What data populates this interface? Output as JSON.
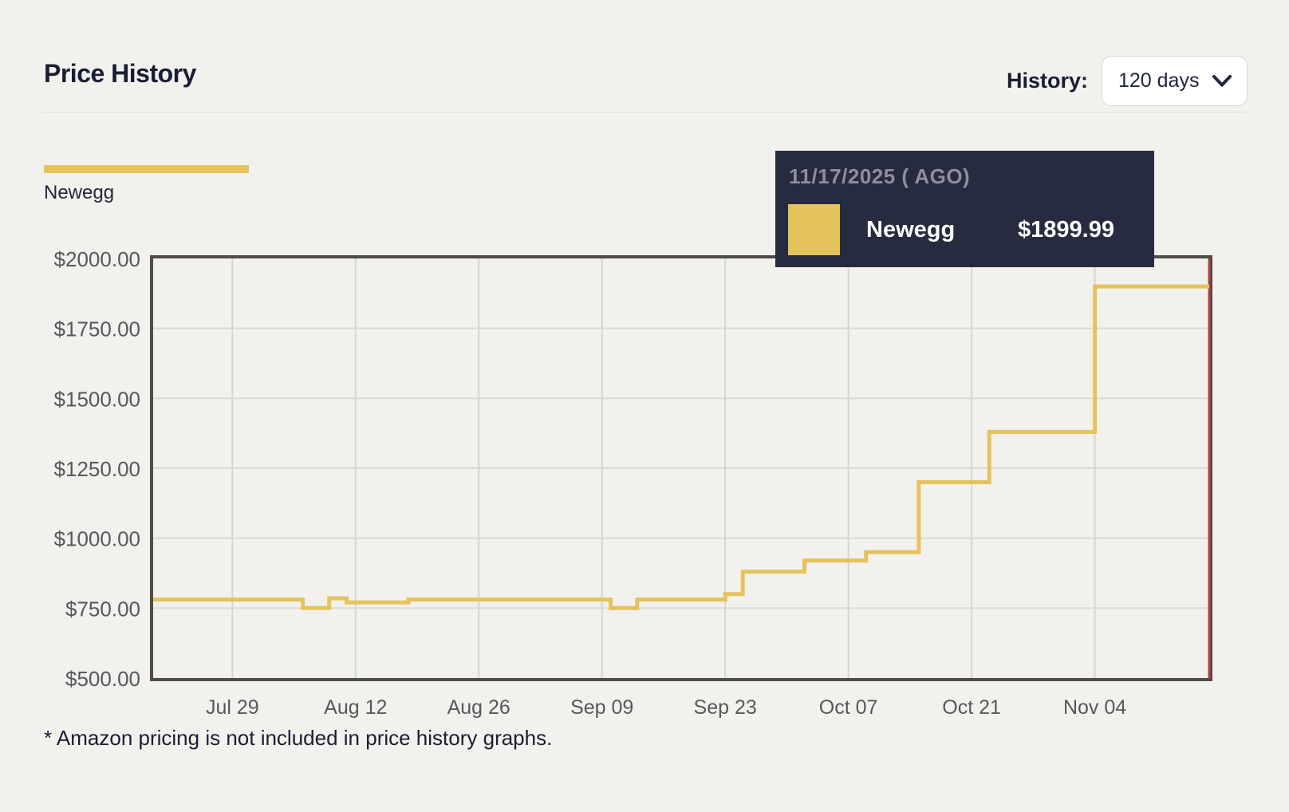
{
  "header": {
    "title": "Price History",
    "history_label": "History:",
    "history_value": "120 days"
  },
  "legend": {
    "label": "Newegg",
    "color": "#e5c35c"
  },
  "tooltip": {
    "date_line": "11/17/2025 ( AGO)",
    "series_name": "Newegg",
    "price": "$1899.99",
    "swatch_color": "#e5c35c",
    "bg": "#272b40"
  },
  "footnote": {
    "text": "* Amazon pricing is not included in price history graphs."
  },
  "chart_data": {
    "type": "line",
    "line_style": "step-after",
    "title": "Price History",
    "x_range": [
      "2025-07-20",
      "2025-11-17"
    ],
    "ylim": [
      500,
      2000
    ],
    "grid": true,
    "legend_position": "top-left",
    "y_ticks": [
      {
        "value": 500,
        "label": "$500.00"
      },
      {
        "value": 750,
        "label": "$750.00"
      },
      {
        "value": 1000,
        "label": "$1000.00"
      },
      {
        "value": 1250,
        "label": "$1250.00"
      },
      {
        "value": 1500,
        "label": "$1500.00"
      },
      {
        "value": 1750,
        "label": "$1750.00"
      },
      {
        "value": 2000,
        "label": "$2000.00"
      }
    ],
    "x_ticks": [
      {
        "date": "2025-07-29",
        "label": "Jul 29"
      },
      {
        "date": "2025-08-12",
        "label": "Aug 12"
      },
      {
        "date": "2025-08-26",
        "label": "Aug 26"
      },
      {
        "date": "2025-09-09",
        "label": "Sep 09"
      },
      {
        "date": "2025-09-23",
        "label": "Sep 23"
      },
      {
        "date": "2025-10-07",
        "label": "Oct 07"
      },
      {
        "date": "2025-10-21",
        "label": "Oct 21"
      },
      {
        "date": "2025-11-04",
        "label": "Nov 04"
      }
    ],
    "series": [
      {
        "name": "Newegg",
        "color": "#e5c35c",
        "points": [
          [
            "2025-07-20",
            779.99
          ],
          [
            "2025-08-06",
            749.99
          ],
          [
            "2025-08-09",
            784.99
          ],
          [
            "2025-08-11",
            769.99
          ],
          [
            "2025-08-18",
            779.99
          ],
          [
            "2025-09-10",
            749.99
          ],
          [
            "2025-09-13",
            779.99
          ],
          [
            "2025-09-23",
            799.99
          ],
          [
            "2025-09-25",
            879.99
          ],
          [
            "2025-10-02",
            919.99
          ],
          [
            "2025-10-09",
            949.99
          ],
          [
            "2025-10-15",
            1199.99
          ],
          [
            "2025-10-23",
            1379.99
          ],
          [
            "2025-11-04",
            1899.99
          ]
        ]
      }
    ],
    "cursor_line": {
      "date": "2025-11-17",
      "color": "#ae4539"
    }
  }
}
